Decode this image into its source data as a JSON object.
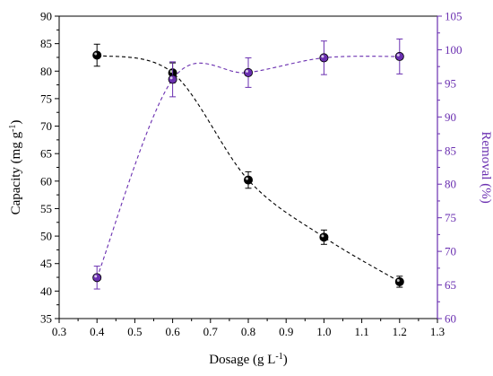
{
  "chart_data": {
    "type": "scatter",
    "x": [
      0.4,
      0.6,
      0.8,
      1.0,
      1.2
    ],
    "xlabel": "Dosage (g L",
    "xlabel_sup": "-1",
    "xlabel_suffix": ")",
    "ylabel": "Capacity (mg g",
    "ylabel_sup": "-1",
    "ylabel_suffix": ")",
    "y2label": "Removal (%)",
    "xlim": [
      0.3,
      1.3
    ],
    "ylim": [
      35,
      90
    ],
    "y2lim": [
      60,
      105
    ],
    "xticks": [
      "0.3",
      "0.4",
      "0.5",
      "0.6",
      "0.7",
      "0.8",
      "0.9",
      "1.0",
      "1.1",
      "1.2",
      "1.3"
    ],
    "yticks": [
      "35",
      "40",
      "45",
      "50",
      "55",
      "60",
      "65",
      "70",
      "75",
      "80",
      "85",
      "90"
    ],
    "y2ticks": [
      "60",
      "65",
      "70",
      "75",
      "80",
      "85",
      "90",
      "95",
      "100",
      "105"
    ],
    "grid": false,
    "series": [
      {
        "axis": "left",
        "values": [
          82.9,
          79.7,
          60.2,
          49.8,
          41.7
        ],
        "errors": [
          2.0,
          1.8,
          1.5,
          1.3,
          1.0
        ],
        "color": "#000000",
        "line_color": "#000000",
        "fit_line": "dashed"
      },
      {
        "axis": "right",
        "values": [
          66.1,
          95.6,
          96.6,
          98.8,
          99.0
        ],
        "errors": [
          1.7,
          2.6,
          2.2,
          2.5,
          2.6
        ],
        "color": "#6a2fb0",
        "line_color": "#6a2fb0",
        "fit_line": "dashed"
      }
    ]
  },
  "colors": {
    "left_axis": "#000000",
    "right_axis": "#6a2fb0"
  }
}
